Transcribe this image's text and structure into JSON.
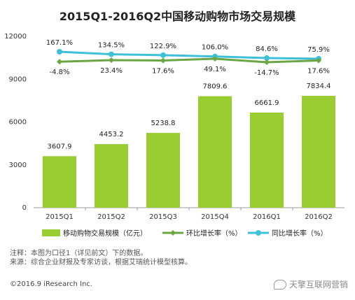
{
  "chart_data": {
    "type": "bar",
    "title": "2015Q1-2016Q2中国移动购物市场交易规模",
    "categories": [
      "2015Q1",
      "2015Q2",
      "2015Q3",
      "2015Q4",
      "2016Q1",
      "2016Q2"
    ],
    "ylim": [
      0,
      12000
    ],
    "yticks": [
      "0",
      "3000",
      "6000",
      "9000",
      "12000"
    ],
    "series": [
      {
        "name": "移动购物交易规模（亿元）",
        "type": "bar",
        "values": [
          3607.9,
          4453.2,
          5238.8,
          7809.6,
          6661.9,
          7834.4
        ],
        "labels": [
          "3607.9",
          "4453.2",
          "5238.8",
          "7809.6",
          "6661.9",
          "7834.4"
        ],
        "color": "#9ACD32"
      },
      {
        "name": "环比增长率（%）",
        "type": "line",
        "values": [
          -4.8,
          23.4,
          17.6,
          49.1,
          -14.7,
          17.6
        ],
        "labels": [
          "-4.8%",
          "23.4%",
          "17.6%",
          "49.1%",
          "-14.7%",
          "17.6%"
        ],
        "color": "#6BA544"
      },
      {
        "name": "同比增长率（%）",
        "type": "line",
        "values": [
          167.1,
          134.5,
          122.9,
          106.0,
          84.6,
          75.9
        ],
        "labels": [
          "167.1%",
          "134.5%",
          "122.9%",
          "106.0%",
          "84.6%",
          "75.9%"
        ],
        "color": "#3EC0D8"
      }
    ],
    "legend": "bottom",
    "grid": false
  },
  "notes": {
    "line1": "注释：本图为口径1（详见前文）下的数据。",
    "line2": "来源：综合企业财报及专家访谈，根据艾瑞统计模型核算。"
  },
  "copyright": "©2016.9 iResearch Inc.",
  "watermark": "天擎互联网营销"
}
